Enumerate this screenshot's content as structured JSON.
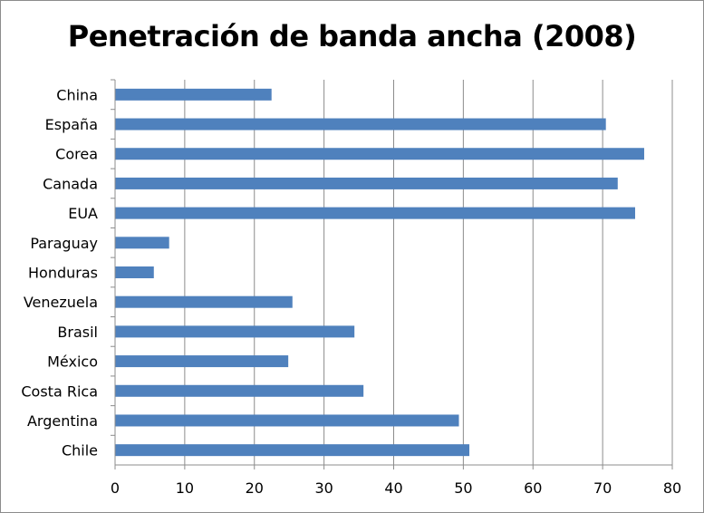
{
  "chart_data": {
    "type": "bar",
    "orientation": "horizontal",
    "title": "Penetración de banda ancha (2008)",
    "xlabel": "",
    "ylabel": "",
    "categories": [
      "China",
      "España",
      "Corea",
      "Canada",
      "EUA",
      "Paraguay",
      "Honduras",
      "Venezuela",
      "Brasil",
      "México",
      "Costa Rica",
      "Argentina",
      "Chile"
    ],
    "values": [
      22.4,
      70.4,
      75.9,
      72.1,
      74.6,
      7.7,
      5.5,
      25.4,
      34.3,
      24.8,
      35.6,
      49.3,
      50.8
    ],
    "xlim": [
      0,
      80
    ],
    "xticks": [
      "0",
      "10",
      "20",
      "30",
      "40",
      "50",
      "60",
      "70",
      "80"
    ],
    "bar_color": "#4f81bd",
    "grid": "vertical gridlines",
    "legend": "none"
  }
}
